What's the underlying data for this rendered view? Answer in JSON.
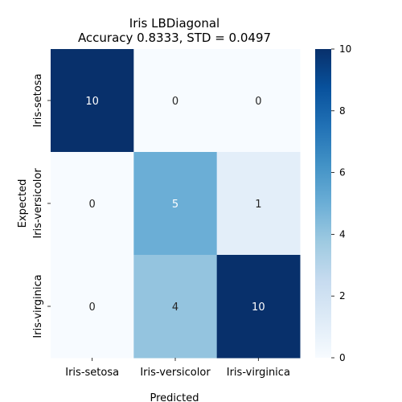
{
  "chart_data": {
    "type": "heatmap",
    "title": "Iris LBDiagonal",
    "subtitle": "Accuracy 0.8333, STD = 0.0497",
    "xlabel": "Predicted",
    "ylabel": "Expected",
    "x_categories": [
      "Iris-setosa",
      "Iris-versicolor",
      "Iris-virginica"
    ],
    "y_categories": [
      "Iris-setosa",
      "Iris-versicolor",
      "Iris-virginica"
    ],
    "values": [
      [
        10,
        0,
        0
      ],
      [
        0,
        5,
        1
      ],
      [
        0,
        4,
        10
      ]
    ],
    "colorbar": {
      "min": 0,
      "max": 10,
      "ticks": [
        0,
        2,
        4,
        6,
        8,
        10
      ],
      "colormap": "Blues"
    }
  }
}
